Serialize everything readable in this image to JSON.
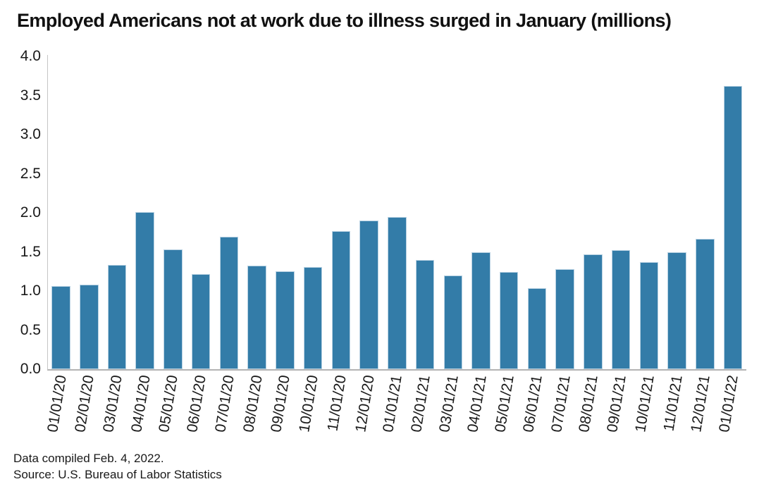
{
  "chart_data": {
    "type": "bar",
    "title": "Employed Americans not at work due to illness surged in January (millions)",
    "categories": [
      "01/01/20",
      "02/01/20",
      "03/01/20",
      "04/01/20",
      "05/01/20",
      "06/01/20",
      "07/01/20",
      "08/01/20",
      "09/01/20",
      "10/01/20",
      "11/01/20",
      "12/01/20",
      "01/01/21",
      "02/01/21",
      "03/01/21",
      "04/01/21",
      "05/01/21",
      "06/01/21",
      "07/01/21",
      "08/01/21",
      "09/01/21",
      "10/01/21",
      "11/01/21",
      "12/01/21",
      "01/01/22"
    ],
    "values": [
      1.06,
      1.08,
      1.33,
      2.01,
      1.53,
      1.22,
      1.69,
      1.32,
      1.25,
      1.31,
      1.77,
      1.9,
      1.95,
      1.4,
      1.2,
      1.5,
      1.24,
      1.04,
      1.28,
      1.47,
      1.52,
      1.37,
      1.5,
      1.67,
      3.62
    ],
    "xlabel": "",
    "ylabel": "",
    "ylim": [
      0.0,
      4.0
    ],
    "ytick_labels": [
      "0.0",
      "0.5",
      "1.0",
      "1.5",
      "2.0",
      "2.5",
      "3.0",
      "3.5",
      "4.0"
    ],
    "grid": false,
    "legend": "none",
    "bar_color": "#337ca8"
  },
  "footer": {
    "line1": "Data compiled Feb. 4, 2022.",
    "line2": "Source: U.S. Bureau of Labor Statistics"
  }
}
